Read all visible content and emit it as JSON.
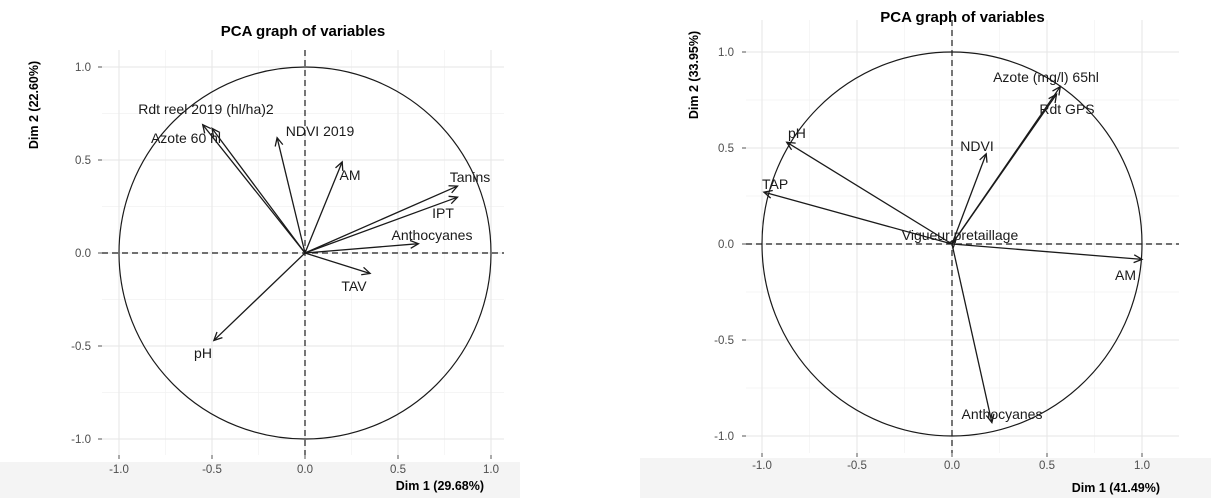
{
  "chart_data": [
    {
      "type": "pca-correlation-circle",
      "title": "PCA graph of variables",
      "xlabel": "Dim 1 (29.68%)",
      "ylabel": "Dim 2 (22.60%)",
      "xlim": [
        -1.0,
        1.0
      ],
      "ylim": [
        -1.0,
        1.0
      ],
      "xticks": [
        "-1.0",
        "-0.5",
        "0.0",
        "0.5",
        "1.0"
      ],
      "yticks": [
        "-1.0",
        "-0.5",
        "0.0",
        "0.5",
        "1.0"
      ],
      "grid": true,
      "variables": [
        {
          "name": "Rdt reel 2019 (hl/ha)2",
          "x": -0.5,
          "y": 0.67
        },
        {
          "name": "Azote 60 hl",
          "x": -0.55,
          "y": 0.69
        },
        {
          "name": "NDVI 2019",
          "x": -0.15,
          "y": 0.62
        },
        {
          "name": "AM",
          "x": 0.2,
          "y": 0.49
        },
        {
          "name": "Tanins",
          "x": 0.82,
          "y": 0.36
        },
        {
          "name": "IPT",
          "x": 0.82,
          "y": 0.3
        },
        {
          "name": "Anthocyanes",
          "x": 0.61,
          "y": 0.05
        },
        {
          "name": "TAV",
          "x": 0.35,
          "y": -0.11
        },
        {
          "name": "pH",
          "x": -0.49,
          "y": -0.47
        }
      ]
    },
    {
      "type": "pca-correlation-circle",
      "title": "PCA graph of variables",
      "xlabel": "Dim 1 (41.49%)",
      "ylabel": "Dim 2 (33.95%)",
      "xlim": [
        -1.0,
        1.0
      ],
      "ylim": [
        -1.0,
        1.0
      ],
      "xticks": [
        "-1.0",
        "-0.5",
        "0.0",
        "0.5",
        "1.0"
      ],
      "yticks": [
        "-1.0",
        "-0.5",
        "0.0",
        "0.5",
        "1.0"
      ],
      "grid": true,
      "variables": [
        {
          "name": "Azote (mg/l) 65hl",
          "x": 0.57,
          "y": 0.82
        },
        {
          "name": "Rdt GPS",
          "x": 0.55,
          "y": 0.78
        },
        {
          "name": "pH",
          "x": -0.87,
          "y": 0.53
        },
        {
          "name": "NDVI",
          "x": 0.18,
          "y": 0.47
        },
        {
          "name": "TAP",
          "x": -0.99,
          "y": 0.27
        },
        {
          "name": "Vigueur pretaillage",
          "x": 0.02,
          "y": 0.02
        },
        {
          "name": "AM",
          "x": 1.0,
          "y": -0.08
        },
        {
          "name": "Anthocyanes",
          "x": 0.21,
          "y": -0.93
        }
      ]
    }
  ]
}
